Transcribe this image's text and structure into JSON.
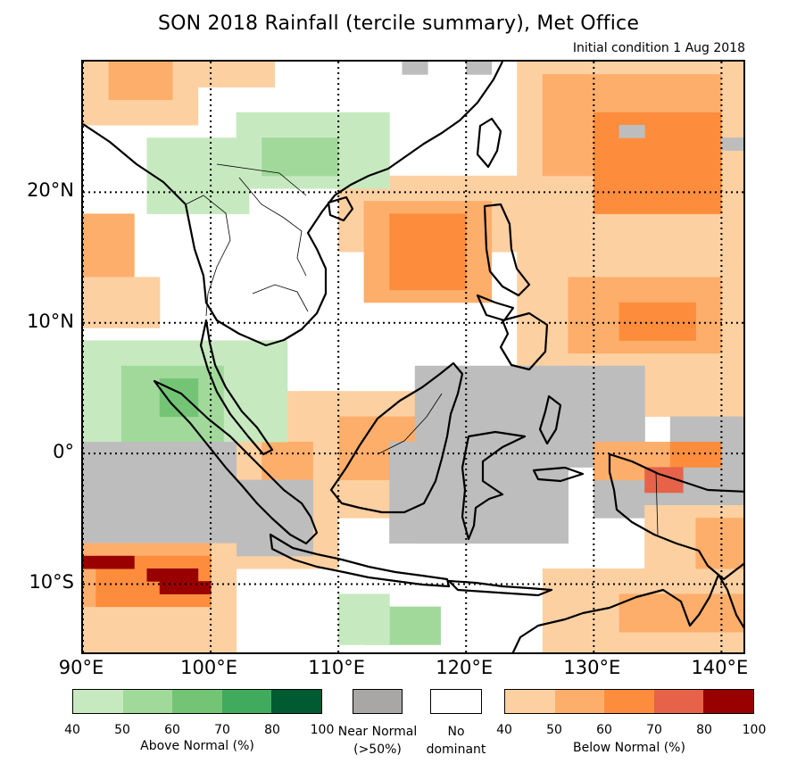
{
  "title": "SON 2018 Rainfall (tercile summary), Met Office",
  "subtitle": "Initial condition 1 Aug 2018",
  "map": {
    "lon_range": [
      90,
      142
    ],
    "lat_range": [
      -15.5,
      30
    ],
    "lat_ticks": [
      {
        "value": 20,
        "label": "20°N"
      },
      {
        "value": 10,
        "label": "10°N"
      },
      {
        "value": 0,
        "label": "0°"
      },
      {
        "value": -10,
        "label": "10°S"
      }
    ],
    "lon_ticks": [
      {
        "value": 90,
        "label": "90°E"
      },
      {
        "value": 100,
        "label": "100°E"
      },
      {
        "value": 110,
        "label": "110°E"
      },
      {
        "value": 120,
        "label": "120°E"
      },
      {
        "value": 130,
        "label": "130°E"
      },
      {
        "value": 140,
        "label": "140°E"
      }
    ],
    "colors": {
      "above": [
        "#c7e9c0",
        "#a1d99b",
        "#74c476",
        "#41ab5d",
        "#005a32"
      ],
      "below": [
        "#fdd0a2",
        "#fdae6b",
        "#fd8d3c",
        "#e6634a",
        "#990000"
      ],
      "near_normal": "#bdbdbd",
      "no_dominant": "#ffffff",
      "coast": "#000000"
    }
  },
  "legend": {
    "above": {
      "label": "Above Normal (%)",
      "ticks": [
        "40",
        "50",
        "60",
        "70",
        "80",
        "100"
      ],
      "colors": [
        "#c7e9c0",
        "#a1d99b",
        "#74c476",
        "#41ab5d",
        "#005a32"
      ]
    },
    "near_normal": {
      "label_line1": "Near Normal",
      "label_line2": "(>50%)",
      "color": "#a9a6a6"
    },
    "no_dominant": {
      "label_line1": "No",
      "label_line2": "dominant",
      "color": "#ffffff"
    },
    "below": {
      "label": "Below Normal (%)",
      "ticks": [
        "40",
        "50",
        "60",
        "70",
        "80",
        "100"
      ],
      "colors": [
        "#fdd0a2",
        "#fdae6b",
        "#fd8d3c",
        "#e6634a",
        "#990000"
      ]
    }
  }
}
